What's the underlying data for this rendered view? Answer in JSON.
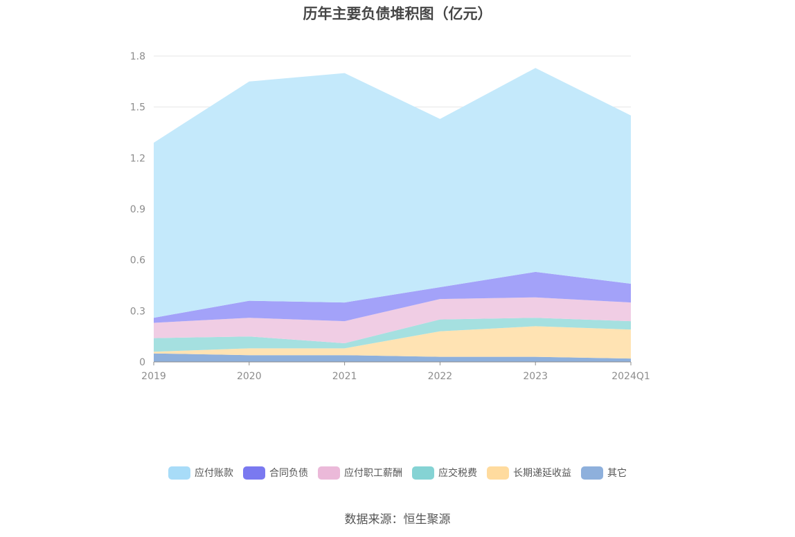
{
  "chart_data": {
    "type": "area",
    "stacked": true,
    "title": "历年主要负债堆积图（亿元）",
    "x": [
      "2019",
      "2020",
      "2021",
      "2022",
      "2023",
      "2024Q1"
    ],
    "ylim": [
      0,
      1.8
    ],
    "yticks": [
      "0",
      "0.3",
      "0.6",
      "0.9",
      "1.2",
      "1.5",
      "1.8"
    ],
    "grid": true,
    "legend_position": "bottom",
    "series": [
      {
        "name": "其它",
        "color": "#8eb0dc",
        "values": [
          0.05,
          0.04,
          0.04,
          0.03,
          0.03,
          0.02
        ]
      },
      {
        "name": "长期递延收益",
        "color": "#ffe3b3",
        "values": [
          0.01,
          0.04,
          0.04,
          0.15,
          0.18,
          0.17
        ]
      },
      {
        "name": "应交税费",
        "color": "#a5e0e0",
        "values": [
          0.08,
          0.07,
          0.03,
          0.07,
          0.05,
          0.05
        ]
      },
      {
        "name": "应付职工薪酬",
        "color": "#f0cde4",
        "values": [
          0.09,
          0.11,
          0.13,
          0.12,
          0.12,
          0.11
        ]
      },
      {
        "name": "合同负债",
        "color": "#a3a2f9",
        "values": [
          0.03,
          0.1,
          0.11,
          0.07,
          0.15,
          0.11
        ]
      },
      {
        "name": "应付账款",
        "color": "#c4e9fb",
        "values": [
          1.03,
          1.29,
          1.35,
          0.99,
          1.2,
          0.99
        ]
      }
    ],
    "legend": [
      {
        "name": "应付账款",
        "color": "#a8dcf8"
      },
      {
        "name": "合同负债",
        "color": "#7a79f0"
      },
      {
        "name": "应付职工薪酬",
        "color": "#ebb9d9"
      },
      {
        "name": "应交税费",
        "color": "#85d3d4"
      },
      {
        "name": "长期递延收益",
        "color": "#ffdb9e"
      },
      {
        "name": "其它",
        "color": "#8eb0dc"
      }
    ]
  },
  "source": "数据来源：恒生聚源"
}
